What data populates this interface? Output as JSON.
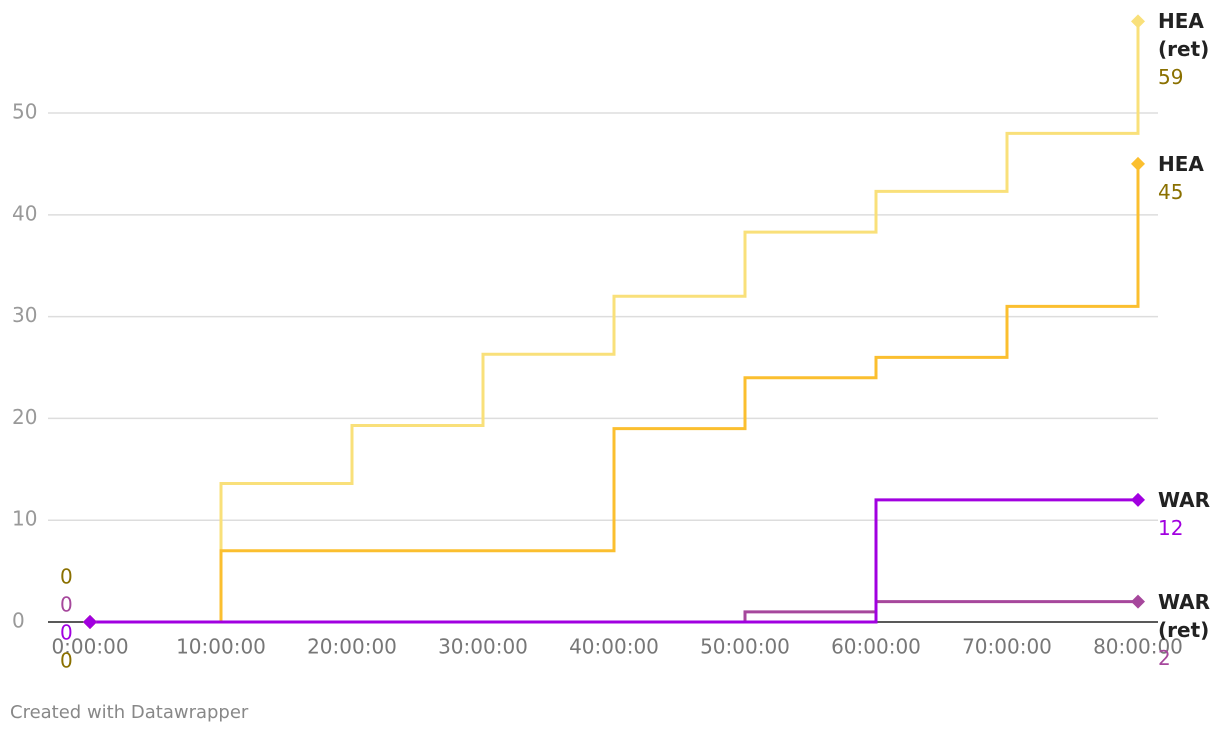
{
  "chart_data": {
    "type": "step-line",
    "categories": [
      "0:00:00",
      "10:00:00",
      "20:00:00",
      "30:00:00",
      "40:00:00",
      "50:00:00",
      "60:00:00",
      "70:00:00",
      "80:00:00"
    ],
    "series": [
      {
        "name": "HEA (ret)",
        "color": "#f9e07a",
        "label_color": "#8a7000",
        "values": [
          0,
          13.6,
          19.3,
          26.3,
          32,
          38.3,
          42.3,
          48,
          59
        ]
      },
      {
        "name": "HEA",
        "color": "#fbbf2f",
        "label_color": "#8a7000",
        "values": [
          0,
          7,
          7,
          7,
          19,
          24,
          26,
          31,
          45
        ]
      },
      {
        "name": "WAR (ret)",
        "color": "#a6479c",
        "label_color": "#a6479c",
        "values": [
          0,
          0,
          0,
          0,
          0,
          1,
          2,
          2,
          2
        ]
      },
      {
        "name": "WAR",
        "color": "#a100e0",
        "label_color": "#a100e0",
        "values": [
          0,
          0,
          0,
          0,
          0,
          0,
          12,
          12,
          12
        ]
      }
    ],
    "ylim": [
      0,
      59
    ],
    "yticks": [
      0,
      10,
      20,
      30,
      40,
      50
    ],
    "grid": true,
    "footer": "Created with Datawrapper"
  }
}
